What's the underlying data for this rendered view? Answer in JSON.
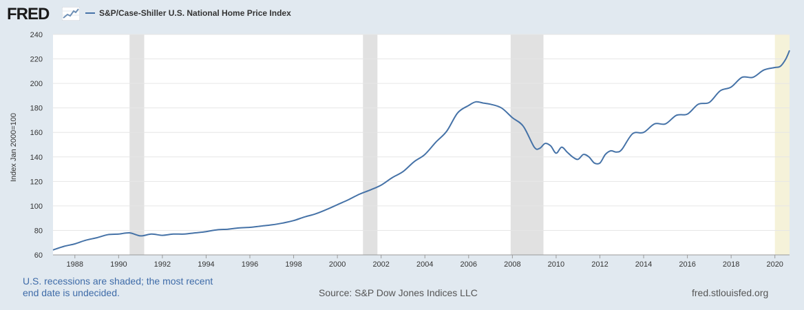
{
  "header": {
    "logo_text": "FRED",
    "logo_icon": "line-chart-icon"
  },
  "footer": {
    "note": "U.S. recessions are shaded; the most recent end date is undecided.",
    "source": "Source: S&P Dow Jones Indices LLC",
    "site": "fred.stlouisfed.org"
  },
  "chart_data": {
    "type": "line",
    "title": "",
    "xlabel": "",
    "ylabel": "Index Jan 2000=100",
    "xlim": [
      1987.0,
      2020.67
    ],
    "ylim": [
      60,
      240
    ],
    "yticks": [
      60,
      80,
      100,
      120,
      140,
      160,
      180,
      200,
      220,
      240
    ],
    "xticks": [
      1988,
      1990,
      1992,
      1994,
      1996,
      1998,
      2000,
      2002,
      2004,
      2006,
      2008,
      2010,
      2012,
      2014,
      2016,
      2018,
      2020
    ],
    "grid": "horizontal",
    "legend_position": "top-left",
    "colors": {
      "line": "#4572a7",
      "recession": "#e1e1e1",
      "undecided": "#f5f2d9",
      "plot_bg": "#ffffff"
    },
    "recessions": [
      [
        1990.5,
        1991.17
      ],
      [
        2001.17,
        2001.83
      ],
      [
        2007.92,
        2009.42
      ]
    ],
    "recession_undecided": [
      2020.0,
      2020.67
    ],
    "series": [
      {
        "name": "S&P/Case-Shiller U.S. National Home Price Index",
        "x": [
          1987.0,
          1987.5,
          1988.0,
          1988.5,
          1989.0,
          1989.5,
          1990.0,
          1990.5,
          1991.0,
          1991.5,
          1992.0,
          1992.5,
          1993.0,
          1993.5,
          1994.0,
          1994.5,
          1995.0,
          1995.5,
          1996.0,
          1996.5,
          1997.0,
          1997.5,
          1998.0,
          1998.5,
          1999.0,
          1999.5,
          2000.0,
          2000.5,
          2001.0,
          2001.5,
          2002.0,
          2002.5,
          2003.0,
          2003.5,
          2004.0,
          2004.5,
          2005.0,
          2005.5,
          2006.0,
          2006.33,
          2006.67,
          2007.0,
          2007.5,
          2008.0,
          2008.5,
          2009.0,
          2009.25,
          2009.5,
          2009.75,
          2010.0,
          2010.25,
          2010.5,
          2010.75,
          2011.0,
          2011.25,
          2011.5,
          2011.75,
          2012.0,
          2012.25,
          2012.5,
          2012.75,
          2013.0,
          2013.5,
          2014.0,
          2014.5,
          2015.0,
          2015.5,
          2016.0,
          2016.5,
          2017.0,
          2017.5,
          2018.0,
          2018.5,
          2019.0,
          2019.5,
          2020.0,
          2020.25,
          2020.5,
          2020.67
        ],
        "y": [
          64,
          67,
          69,
          72,
          74,
          76.5,
          77,
          78,
          75.5,
          77,
          76,
          77,
          77,
          78,
          79,
          80.5,
          81,
          82,
          82.5,
          83.5,
          84.5,
          86,
          88,
          91,
          93.5,
          97,
          101,
          105,
          109.5,
          113,
          117,
          123,
          128,
          136,
          142,
          152,
          161,
          176,
          182,
          185,
          184,
          183,
          180,
          172,
          165,
          148,
          147,
          151,
          149,
          143,
          148,
          144,
          140,
          138,
          142,
          140,
          135,
          135,
          142,
          145,
          144,
          146,
          159,
          160,
          167,
          167,
          174,
          175,
          183,
          184.5,
          194,
          197,
          205,
          205,
          211,
          213,
          214,
          220,
          227
        ]
      }
    ]
  }
}
